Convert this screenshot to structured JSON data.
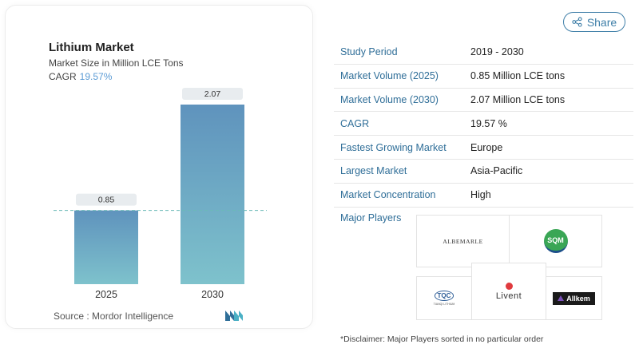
{
  "chart_card": {
    "title": "Lithium Market",
    "subtitle": "Market Size in Million LCE Tons",
    "cagr_label": "CAGR",
    "cagr_value": "19.57%",
    "source": "Source :  Mordor Intelligence"
  },
  "chart_data": {
    "type": "bar",
    "categories": [
      "2025",
      "2030"
    ],
    "values": [
      0.85,
      2.07
    ],
    "data_labels": [
      "0.85",
      "2.07"
    ],
    "title": "Lithium Market",
    "xlabel": "",
    "ylabel": "",
    "ylim": [
      0,
      2.07
    ],
    "grid": false,
    "reference_line": "dashed line at 2025 value",
    "colors": {
      "bar_top": "#5f93bd",
      "bar_bottom": "#7ec2cc",
      "label_bg": "#e8ecef",
      "ref_line": "#6cb9b8"
    }
  },
  "share": {
    "label": "Share",
    "icon": "share-icon"
  },
  "info_rows": [
    {
      "label": "Study Period",
      "value": "2019 - 2030"
    },
    {
      "label": "Market Volume (2025)",
      "value": "0.85 Million LCE tons"
    },
    {
      "label": "Market Volume (2030)",
      "value": "2.07 Million LCE tons"
    },
    {
      "label": "CAGR",
      "value": "19.57 %"
    },
    {
      "label": "Fastest Growing Market",
      "value": "Europe"
    },
    {
      "label": "Largest Market",
      "value": "Asia-Pacific"
    },
    {
      "label": "Market Concentration",
      "value": "High"
    }
  ],
  "major_players": {
    "label": "Major Players",
    "logos": {
      "albemarle": "ALBEMARLE",
      "sqm": "SQM",
      "tianqi": "TQC",
      "tianqi_small": "TIANQI LITHIUM",
      "livent": "Livent",
      "allkem": "Allkem"
    }
  },
  "disclaimer": "*Disclaimer: Major Players sorted in no particular order"
}
